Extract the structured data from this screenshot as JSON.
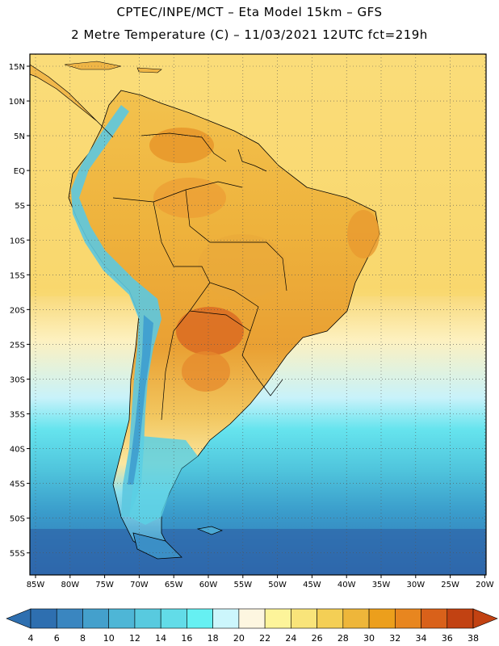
{
  "header": {
    "line1": "CPTEC/INPE/MCT –  Eta Model 15km – GFS",
    "line2": "2 Metre Temperature (C) – 11/03/2021 12UTC fct=219h"
  },
  "map": {
    "region": "South America",
    "lat_labels": [
      "15N",
      "10N",
      "5N",
      "EQ",
      "5S",
      "10S",
      "15S",
      "20S",
      "25S",
      "30S",
      "35S",
      "40S",
      "45S",
      "50S",
      "55S"
    ],
    "lon_labels": [
      "85W",
      "80W",
      "75W",
      "70W",
      "65W",
      "60W",
      "55W",
      "50W",
      "45W",
      "40W",
      "35W",
      "30W",
      "25W",
      "20W"
    ]
  },
  "colorbar": {
    "unit": "C",
    "labels": [
      "4",
      "6",
      "8",
      "10",
      "12",
      "14",
      "16",
      "18",
      "20",
      "22",
      "24",
      "26",
      "28",
      "30",
      "32",
      "34",
      "36",
      "38"
    ],
    "colors": [
      "#2e6fb0",
      "#3a86c0",
      "#44a0cc",
      "#4eb6d6",
      "#58cadf",
      "#62dce8",
      "#66f0f2",
      "#ccf6fc",
      "#fdf6e0",
      "#fdf49a",
      "#f9e47a",
      "#f4cf55",
      "#eeb63a",
      "#ec9f1c",
      "#e8861f",
      "#d9611a",
      "#c24212"
    ],
    "low_end_color": "#2e6fb0",
    "high_end_color": "#c24212"
  },
  "colors": {
    "land_hot": "#e8a23a",
    "land_warm": "#f2c65a",
    "ocean_warm": "#f8d670",
    "ocean_mid": "#fdf1c0",
    "ocean_cool": "#5dd6e6",
    "ocean_cold": "#2f7cbf",
    "andes": "#4fc2dc"
  }
}
